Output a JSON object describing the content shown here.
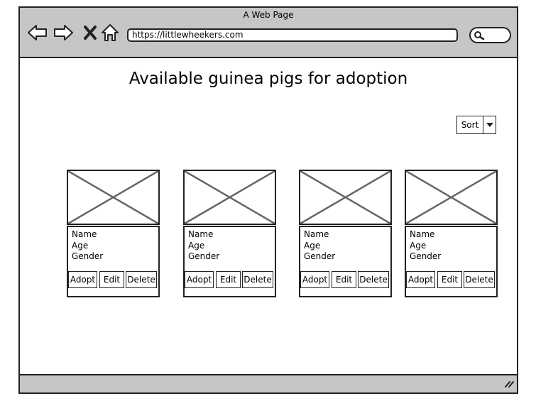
{
  "window": {
    "title": "A Web Page"
  },
  "browser": {
    "url": "https://littlewheekers.com",
    "nav_icons": [
      "back-arrow-icon",
      "forward-arrow-icon",
      "close-x-icon",
      "home-icon"
    ],
    "search_icon": "search-icon"
  },
  "page": {
    "title": "Available guinea pigs for adoption",
    "sort_label": "Sort"
  },
  "cards": [
    {
      "name": "Name",
      "age": "Age",
      "gender": "Gender",
      "adopt": "Adopt",
      "edit": "Edit",
      "delete": "Delete"
    },
    {
      "name": "Name",
      "age": "Age",
      "gender": "Gender",
      "adopt": "Adopt",
      "edit": "Edit",
      "delete": "Delete"
    },
    {
      "name": "Name",
      "age": "Age",
      "gender": "Gender",
      "adopt": "Adopt",
      "edit": "Edit",
      "delete": "Delete"
    },
    {
      "name": "Name",
      "age": "Age",
      "gender": "Gender",
      "adopt": "Adopt",
      "edit": "Edit",
      "delete": "Delete"
    }
  ],
  "colors": {
    "chrome": "#c6c6c6",
    "stroke": "#222222",
    "placeholder": "#666666"
  }
}
